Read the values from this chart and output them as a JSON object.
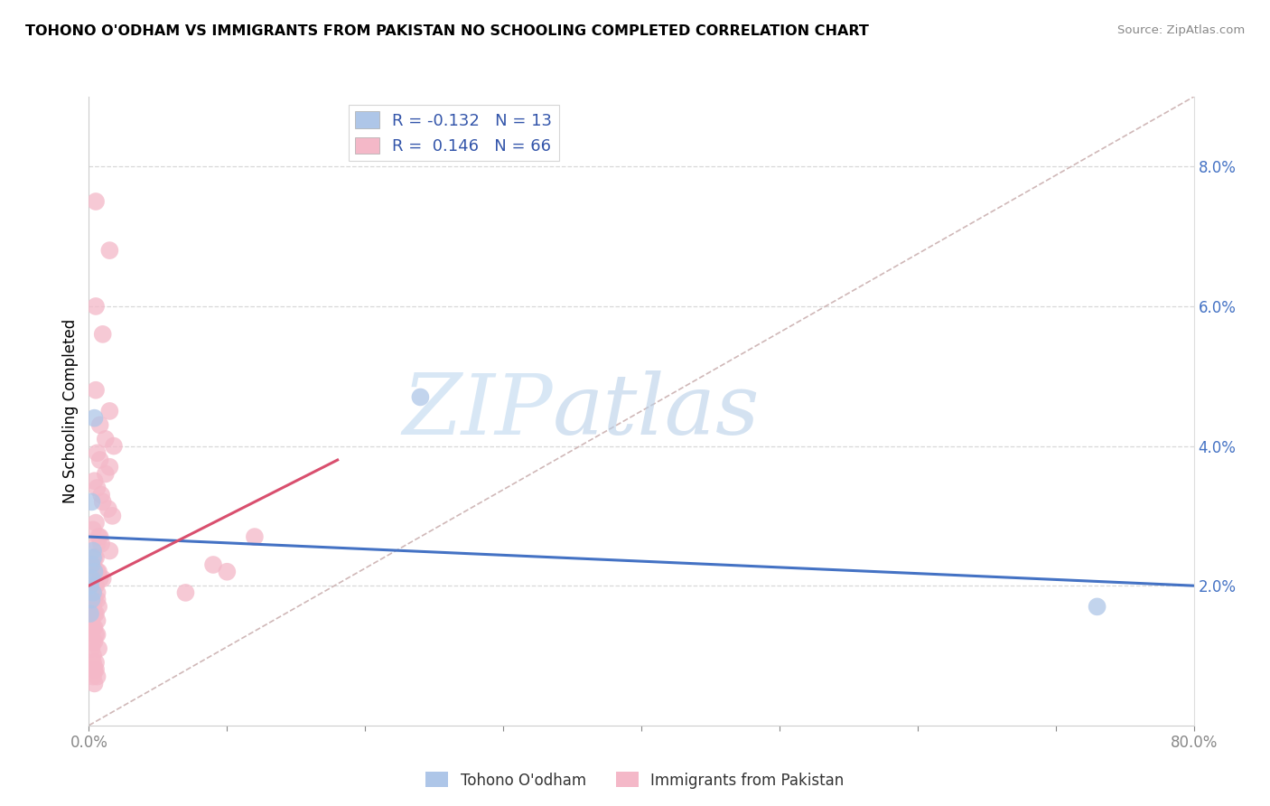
{
  "title": "TOHONO O'ODHAM VS IMMIGRANTS FROM PAKISTAN NO SCHOOLING COMPLETED CORRELATION CHART",
  "source": "Source: ZipAtlas.com",
  "ylabel": "No Schooling Completed",
  "watermark_zip": "ZIP",
  "watermark_atlas": "atlas",
  "xlim": [
    0.0,
    0.8
  ],
  "ylim": [
    0.0,
    0.09
  ],
  "xticks": [
    0.0,
    0.1,
    0.2,
    0.3,
    0.4,
    0.5,
    0.6,
    0.7,
    0.8
  ],
  "xticklabels": [
    "0.0%",
    "",
    "",
    "",
    "",
    "",
    "",
    "",
    "80.0%"
  ],
  "yticks_right": [
    0.02,
    0.04,
    0.06,
    0.08
  ],
  "ytick_right_labels": [
    "2.0%",
    "4.0%",
    "6.0%",
    "8.0%"
  ],
  "legend_r_blue": "-0.132",
  "legend_n_blue": "13",
  "legend_r_pink": "0.146",
  "legend_n_pink": "66",
  "blue_color": "#aec6e8",
  "pink_color": "#f4b8c8",
  "blue_line_color": "#4472c4",
  "pink_line_color": "#d94f6e",
  "diagonal_color": "#d0b8b8",
  "grid_color": "#d8d8d8",
  "blue_scatter": [
    [
      0.002,
      0.032
    ],
    [
      0.004,
      0.044
    ],
    [
      0.003,
      0.025
    ],
    [
      0.002,
      0.023
    ],
    [
      0.004,
      0.022
    ],
    [
      0.002,
      0.021
    ],
    [
      0.001,
      0.02
    ],
    [
      0.003,
      0.019
    ],
    [
      0.002,
      0.018
    ],
    [
      0.001,
      0.016
    ],
    [
      0.003,
      0.024
    ],
    [
      0.24,
      0.047
    ],
    [
      0.73,
      0.017
    ]
  ],
  "pink_scatter": [
    [
      0.005,
      0.075
    ],
    [
      0.015,
      0.068
    ],
    [
      0.005,
      0.06
    ],
    [
      0.01,
      0.056
    ],
    [
      0.005,
      0.048
    ],
    [
      0.015,
      0.045
    ],
    [
      0.008,
      0.043
    ],
    [
      0.012,
      0.041
    ],
    [
      0.018,
      0.04
    ],
    [
      0.006,
      0.039
    ],
    [
      0.008,
      0.038
    ],
    [
      0.015,
      0.037
    ],
    [
      0.012,
      0.036
    ],
    [
      0.004,
      0.035
    ],
    [
      0.006,
      0.034
    ],
    [
      0.009,
      0.033
    ],
    [
      0.01,
      0.032
    ],
    [
      0.014,
      0.031
    ],
    [
      0.017,
      0.03
    ],
    [
      0.005,
      0.029
    ],
    [
      0.003,
      0.028
    ],
    [
      0.008,
      0.027
    ],
    [
      0.007,
      0.027
    ],
    [
      0.006,
      0.026
    ],
    [
      0.009,
      0.026
    ],
    [
      0.015,
      0.025
    ],
    [
      0.004,
      0.024
    ],
    [
      0.005,
      0.024
    ],
    [
      0.003,
      0.023
    ],
    [
      0.006,
      0.022
    ],
    [
      0.007,
      0.022
    ],
    [
      0.008,
      0.021
    ],
    [
      0.01,
      0.021
    ],
    [
      0.004,
      0.02
    ],
    [
      0.005,
      0.02
    ],
    [
      0.006,
      0.019
    ],
    [
      0.003,
      0.019
    ],
    [
      0.004,
      0.018
    ],
    [
      0.006,
      0.018
    ],
    [
      0.007,
      0.017
    ],
    [
      0.002,
      0.017
    ],
    [
      0.003,
      0.017
    ],
    [
      0.004,
      0.016
    ],
    [
      0.005,
      0.016
    ],
    [
      0.006,
      0.015
    ],
    [
      0.002,
      0.015
    ],
    [
      0.003,
      0.014
    ],
    [
      0.004,
      0.014
    ],
    [
      0.005,
      0.013
    ],
    [
      0.006,
      0.013
    ],
    [
      0.003,
      0.012
    ],
    [
      0.004,
      0.012
    ],
    [
      0.007,
      0.011
    ],
    [
      0.002,
      0.011
    ],
    [
      0.003,
      0.01
    ],
    [
      0.12,
      0.027
    ],
    [
      0.09,
      0.023
    ],
    [
      0.005,
      0.009
    ],
    [
      0.003,
      0.009
    ],
    [
      0.004,
      0.008
    ],
    [
      0.005,
      0.008
    ],
    [
      0.006,
      0.007
    ],
    [
      0.003,
      0.007
    ],
    [
      0.004,
      0.006
    ],
    [
      0.1,
      0.022
    ],
    [
      0.07,
      0.019
    ]
  ],
  "blue_line_x": [
    0.0,
    0.8
  ],
  "blue_line_y": [
    0.027,
    0.02
  ],
  "pink_line_x": [
    0.0,
    0.18
  ],
  "pink_line_y": [
    0.02,
    0.038
  ]
}
